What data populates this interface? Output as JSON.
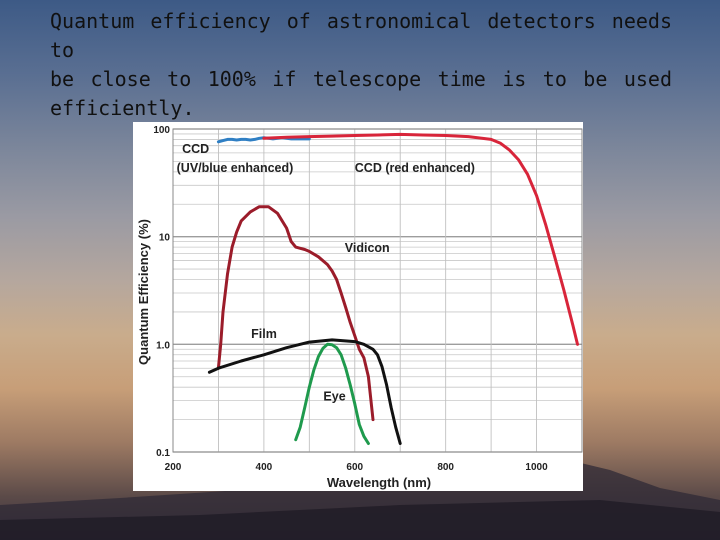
{
  "heading": {
    "line1": "Quantum efficiency of astronomical detectors needs to",
    "line2": "be close to 100% if  telescope time is to be used",
    "line3": "efficiently."
  },
  "colors": {
    "ccd_uv": "#2f7fc4",
    "ccd_red": "#d8253a",
    "vidicon": "#9b1c2a",
    "film": "#111111",
    "eye": "#1f9a4d"
  },
  "chart_data": {
    "type": "line",
    "xlabel": "Wavelength (nm)",
    "ylabel": "Quantum Efficiency (%)",
    "xlim": [
      200,
      1100
    ],
    "ylim": [
      0.1,
      100
    ],
    "yscale": "log",
    "xticks": [
      "200",
      "400",
      "600",
      "800",
      "1000"
    ],
    "yticks": [
      "0.1",
      "1.0",
      "10",
      "100"
    ],
    "grid": true,
    "series": [
      {
        "name": "CCD (UV/blue enhanced)",
        "color_key": "ccd_uv",
        "x": [
          300,
          310,
          320,
          330,
          340,
          350,
          360,
          370,
          380,
          390,
          400,
          410,
          420,
          430,
          440,
          450,
          460,
          470,
          480,
          490,
          500
        ],
        "y": [
          76,
          78,
          80,
          80,
          79,
          80,
          80,
          79,
          80,
          82,
          83,
          82,
          81,
          82,
          83,
          82,
          81,
          81,
          81,
          81,
          81
        ]
      },
      {
        "name": "CCD (red enhanced)",
        "color_key": "ccd_red",
        "x": [
          400,
          450,
          500,
          550,
          600,
          650,
          700,
          750,
          800,
          850,
          900,
          920,
          940,
          960,
          980,
          1000,
          1020,
          1040,
          1060,
          1080,
          1090
        ],
        "y": [
          82,
          84,
          85,
          86,
          87,
          88,
          89,
          88,
          87,
          85,
          80,
          74,
          64,
          52,
          38,
          24,
          13,
          6.5,
          3.2,
          1.5,
          1.0
        ]
      },
      {
        "name": "Vidicon",
        "color_key": "vidicon",
        "x": [
          300,
          305,
          310,
          320,
          330,
          340,
          350,
          370,
          390,
          410,
          430,
          450,
          460,
          470,
          480,
          490,
          500,
          520,
          540,
          550,
          560,
          570,
          580,
          590,
          600,
          610,
          620,
          630,
          640
        ],
        "y": [
          0.6,
          1.0,
          2.0,
          4.5,
          8.0,
          11.0,
          14.0,
          17.0,
          19.0,
          19.0,
          16.5,
          12.0,
          9.0,
          8.0,
          7.8,
          7.6,
          7.3,
          6.5,
          5.5,
          4.8,
          4.0,
          3.0,
          2.2,
          1.6,
          1.2,
          0.9,
          0.75,
          0.5,
          0.2
        ]
      },
      {
        "name": "Film",
        "color_key": "film",
        "x": [
          280,
          300,
          350,
          400,
          450,
          500,
          550,
          600,
          620,
          640,
          650,
          660,
          670,
          680,
          690,
          700
        ],
        "y": [
          0.55,
          0.6,
          0.7,
          0.8,
          0.93,
          1.05,
          1.1,
          1.06,
          1.0,
          0.9,
          0.8,
          0.62,
          0.42,
          0.26,
          0.17,
          0.12
        ]
      },
      {
        "name": "Eye",
        "color_key": "eye",
        "x": [
          470,
          480,
          490,
          500,
          510,
          520,
          530,
          540,
          550,
          560,
          570,
          580,
          590,
          600,
          610,
          620,
          630
        ],
        "y": [
          0.13,
          0.17,
          0.26,
          0.4,
          0.58,
          0.77,
          0.92,
          1.0,
          0.99,
          0.93,
          0.8,
          0.6,
          0.42,
          0.28,
          0.18,
          0.14,
          0.12
        ]
      }
    ],
    "annotations": [
      {
        "text": "CCD",
        "series": "CCD (UV/blue enhanced)"
      },
      {
        "text": "(UV/blue enhanced)",
        "series": "CCD (UV/blue enhanced)"
      },
      {
        "text": "CCD (red enhanced)",
        "series": "CCD (red enhanced)"
      },
      {
        "text": "Vidicon",
        "series": "Vidicon"
      },
      {
        "text": "Film",
        "series": "Film"
      },
      {
        "text": "Eye",
        "series": "Eye"
      }
    ]
  }
}
